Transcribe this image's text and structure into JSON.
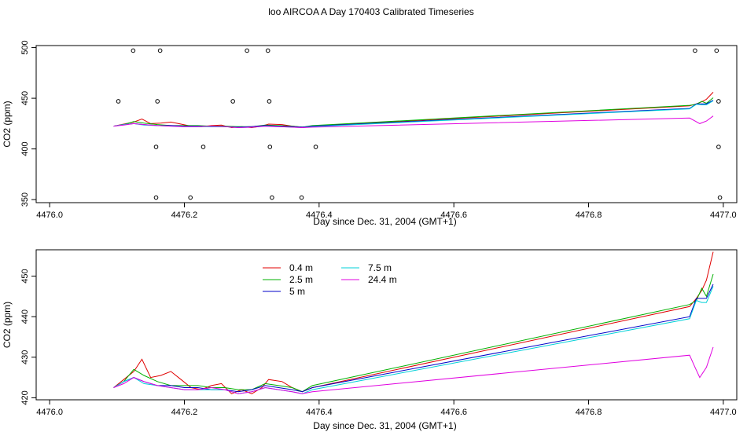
{
  "title": "loo AIRCOA A  Day 170403  Calibrated Timeseries",
  "colors": {
    "0.4 m": "#e00000",
    "2.5 m": "#00b000",
    "5 m": "#0000c8",
    "7.5 m": "#00d0d8",
    "24.4 m": "#e000e0",
    "axis": "#000000"
  },
  "chart_data": [
    {
      "type": "scatter",
      "title": "",
      "xlabel": "Day since Dec. 31, 2004 (GMT+1)",
      "ylabel": "CO2 (ppm)",
      "xlim": [
        3.98,
        5.02
      ],
      "ylim": [
        347,
        502
      ],
      "xticks": [
        4.0,
        4.2,
        4.4,
        4.6,
        4.8,
        5.0
      ],
      "xtick_labels": [
        "4476.0",
        "4476.2",
        "4476.4",
        "4476.6",
        "4476.8",
        "4477.0"
      ],
      "yticks": [
        350,
        400,
        450,
        500
      ],
      "ytick_labels": [
        "350",
        "400",
        "450",
        "500"
      ],
      "box": true,
      "grid": false,
      "points": [
        {
          "x": 4.102,
          "y": 447
        },
        {
          "x": 4.124,
          "y": 497
        },
        {
          "x": 4.158,
          "y": 402
        },
        {
          "x": 4.158,
          "y": 352
        },
        {
          "x": 4.16,
          "y": 447
        },
        {
          "x": 4.164,
          "y": 497
        },
        {
          "x": 4.209,
          "y": 352
        },
        {
          "x": 4.228,
          "y": 402
        },
        {
          "x": 4.272,
          "y": 447
        },
        {
          "x": 4.293,
          "y": 497
        },
        {
          "x": 4.324,
          "y": 497
        },
        {
          "x": 4.326,
          "y": 447
        },
        {
          "x": 4.327,
          "y": 402
        },
        {
          "x": 4.33,
          "y": 352
        },
        {
          "x": 4.374,
          "y": 352
        },
        {
          "x": 4.395,
          "y": 402
        },
        {
          "x": 4.958,
          "y": 497
        },
        {
          "x": 4.99,
          "y": 497
        },
        {
          "x": 4.993,
          "y": 447
        },
        {
          "x": 4.993,
          "y": 402
        },
        {
          "x": 4.995,
          "y": 352
        }
      ],
      "series": [
        {
          "name": "0.4 m",
          "points": [
            [
              4.095,
              422.5
            ],
            [
              4.11,
              424.5
            ],
            [
              4.125,
              426.5
            ],
            [
              4.137,
              429.5
            ],
            [
              4.15,
              425
            ],
            [
              4.165,
              425.5
            ],
            [
              4.18,
              426.5
            ],
            [
              4.195,
              424.5
            ],
            [
              4.21,
              422.5
            ],
            [
              4.225,
              422
            ],
            [
              4.24,
              423
            ],
            [
              4.255,
              423.5
            ],
            [
              4.27,
              421
            ],
            [
              4.285,
              422
            ],
            [
              4.3,
              421
            ],
            [
              4.315,
              422.5
            ],
            [
              4.325,
              424.5
            ],
            [
              4.345,
              424
            ],
            [
              4.36,
              422.5
            ],
            [
              4.375,
              421.5
            ],
            [
              4.39,
              422.5
            ],
            [
              4.95,
              442.5
            ],
            [
              4.96,
              444.5
            ],
            [
              4.968,
              446.5
            ],
            [
              4.975,
              449
            ],
            [
              4.985,
              456
            ]
          ]
        },
        {
          "name": "2.5 m",
          "points": [
            [
              4.095,
              422.5
            ],
            [
              4.11,
              424
            ],
            [
              4.125,
              427
            ],
            [
              4.14,
              425.5
            ],
            [
              4.16,
              424
            ],
            [
              4.18,
              423
            ],
            [
              4.2,
              423
            ],
            [
              4.22,
              423
            ],
            [
              4.24,
              422.5
            ],
            [
              4.26,
              422.5
            ],
            [
              4.28,
              422
            ],
            [
              4.3,
              422
            ],
            [
              4.32,
              423.5
            ],
            [
              4.34,
              423
            ],
            [
              4.36,
              422.5
            ],
            [
              4.375,
              421.5
            ],
            [
              4.39,
              423
            ],
            [
              4.95,
              443
            ],
            [
              4.96,
              444
            ],
            [
              4.968,
              447
            ],
            [
              4.975,
              445
            ],
            [
              4.985,
              450.5
            ]
          ]
        },
        {
          "name": "5 m",
          "points": [
            [
              4.095,
              422.5
            ],
            [
              4.11,
              424
            ],
            [
              4.125,
              425
            ],
            [
              4.14,
              424
            ],
            [
              4.16,
              423
            ],
            [
              4.18,
              423
            ],
            [
              4.2,
              422.5
            ],
            [
              4.22,
              422.5
            ],
            [
              4.24,
              422
            ],
            [
              4.26,
              422
            ],
            [
              4.28,
              421.5
            ],
            [
              4.3,
              422
            ],
            [
              4.32,
              423
            ],
            [
              4.34,
              422.5
            ],
            [
              4.36,
              422
            ],
            [
              4.375,
              421.5
            ],
            [
              4.39,
              422.5
            ],
            [
              4.95,
              440
            ],
            [
              4.96,
              444.5
            ],
            [
              4.968,
              444.5
            ],
            [
              4.975,
              444.5
            ],
            [
              4.985,
              448
            ]
          ]
        },
        {
          "name": "7.5 m",
          "points": [
            [
              4.095,
              422.5
            ],
            [
              4.11,
              424
            ],
            [
              4.125,
              425
            ],
            [
              4.14,
              423.5
            ],
            [
              4.16,
              423
            ],
            [
              4.18,
              422.5
            ],
            [
              4.2,
              422
            ],
            [
              4.22,
              422
            ],
            [
              4.24,
              422
            ],
            [
              4.26,
              422
            ],
            [
              4.28,
              421
            ],
            [
              4.3,
              421.5
            ],
            [
              4.32,
              422.5
            ],
            [
              4.34,
              422
            ],
            [
              4.36,
              421.5
            ],
            [
              4.375,
              421
            ],
            [
              4.39,
              422
            ],
            [
              4.95,
              439.5
            ],
            [
              4.96,
              444
            ],
            [
              4.968,
              443.5
            ],
            [
              4.975,
              443.5
            ],
            [
              4.985,
              447.5
            ]
          ]
        },
        {
          "name": "24.4 m",
          "points": [
            [
              4.095,
              422.5
            ],
            [
              4.11,
              423.5
            ],
            [
              4.125,
              425
            ],
            [
              4.14,
              424
            ],
            [
              4.16,
              423
            ],
            [
              4.18,
              422.5
            ],
            [
              4.2,
              422
            ],
            [
              4.22,
              422
            ],
            [
              4.24,
              422.5
            ],
            [
              4.26,
              422
            ],
            [
              4.28,
              421
            ],
            [
              4.3,
              421.5
            ],
            [
              4.32,
              422.5
            ],
            [
              4.34,
              422
            ],
            [
              4.36,
              421.5
            ],
            [
              4.375,
              421
            ],
            [
              4.39,
              421.5
            ],
            [
              4.95,
              430.5
            ],
            [
              4.958,
              427.5
            ],
            [
              4.965,
              425
            ],
            [
              4.975,
              427.5
            ],
            [
              4.985,
              432.5
            ]
          ]
        }
      ]
    },
    {
      "type": "line",
      "title": "",
      "xlabel": "Day since Dec. 31, 2004 (GMT+1)",
      "ylabel": "CO2 (ppm)",
      "xlim": [
        3.98,
        5.02
      ],
      "ylim": [
        419.5,
        456.5
      ],
      "xticks": [
        4.0,
        4.2,
        4.4,
        4.6,
        4.8,
        5.0
      ],
      "xtick_labels": [
        "4476.0",
        "4476.2",
        "4476.4",
        "4476.6",
        "4476.8",
        "4477.0"
      ],
      "yticks": [
        420,
        430,
        440,
        450
      ],
      "ytick_labels": [
        "420",
        "430",
        "440",
        "450"
      ],
      "box": true,
      "grid": false,
      "legend": {
        "position": "top-left",
        "columns": 2,
        "entries": [
          "0.4 m",
          "2.5 m",
          "5 m",
          "7.5 m",
          "24.4 m"
        ]
      },
      "series": [
        {
          "name": "0.4 m",
          "points": [
            [
              4.095,
              422.5
            ],
            [
              4.11,
              424.5
            ],
            [
              4.125,
              426.5
            ],
            [
              4.137,
              429.5
            ],
            [
              4.15,
              425
            ],
            [
              4.165,
              425.5
            ],
            [
              4.18,
              426.5
            ],
            [
              4.195,
              424.5
            ],
            [
              4.21,
              422.5
            ],
            [
              4.225,
              422
            ],
            [
              4.24,
              423
            ],
            [
              4.255,
              423.5
            ],
            [
              4.27,
              421
            ],
            [
              4.285,
              422
            ],
            [
              4.3,
              421
            ],
            [
              4.315,
              422.5
            ],
            [
              4.325,
              424.5
            ],
            [
              4.345,
              424
            ],
            [
              4.36,
              422.5
            ],
            [
              4.375,
              421.5
            ],
            [
              4.39,
              422.5
            ],
            [
              4.95,
              442.5
            ],
            [
              4.96,
              444.5
            ],
            [
              4.968,
              446.5
            ],
            [
              4.975,
              449
            ],
            [
              4.985,
              456
            ]
          ]
        },
        {
          "name": "2.5 m",
          "points": [
            [
              4.095,
              422.5
            ],
            [
              4.11,
              424
            ],
            [
              4.125,
              427
            ],
            [
              4.14,
              425.5
            ],
            [
              4.16,
              424
            ],
            [
              4.18,
              423
            ],
            [
              4.2,
              423
            ],
            [
              4.22,
              423
            ],
            [
              4.24,
              422.5
            ],
            [
              4.26,
              422.5
            ],
            [
              4.28,
              422
            ],
            [
              4.3,
              422
            ],
            [
              4.32,
              423.5
            ],
            [
              4.34,
              423
            ],
            [
              4.36,
              422.5
            ],
            [
              4.375,
              421.5
            ],
            [
              4.39,
              423
            ],
            [
              4.95,
              443
            ],
            [
              4.96,
              444
            ],
            [
              4.968,
              447
            ],
            [
              4.975,
              445
            ],
            [
              4.985,
              450.5
            ]
          ]
        },
        {
          "name": "5 m",
          "points": [
            [
              4.095,
              422.5
            ],
            [
              4.11,
              424
            ],
            [
              4.125,
              425
            ],
            [
              4.14,
              424
            ],
            [
              4.16,
              423
            ],
            [
              4.18,
              423
            ],
            [
              4.2,
              422.5
            ],
            [
              4.22,
              422.5
            ],
            [
              4.24,
              422
            ],
            [
              4.26,
              422
            ],
            [
              4.28,
              421.5
            ],
            [
              4.3,
              422
            ],
            [
              4.32,
              423
            ],
            [
              4.34,
              422.5
            ],
            [
              4.36,
              422
            ],
            [
              4.375,
              421.5
            ],
            [
              4.39,
              422.5
            ],
            [
              4.95,
              440
            ],
            [
              4.96,
              444.5
            ],
            [
              4.968,
              444.5
            ],
            [
              4.975,
              444.5
            ],
            [
              4.985,
              448
            ]
          ]
        },
        {
          "name": "7.5 m",
          "points": [
            [
              4.095,
              422.5
            ],
            [
              4.11,
              424
            ],
            [
              4.125,
              425
            ],
            [
              4.14,
              423.5
            ],
            [
              4.16,
              423
            ],
            [
              4.18,
              422.5
            ],
            [
              4.2,
              422
            ],
            [
              4.22,
              422
            ],
            [
              4.24,
              422
            ],
            [
              4.26,
              422
            ],
            [
              4.28,
              421
            ],
            [
              4.3,
              421.5
            ],
            [
              4.32,
              422.5
            ],
            [
              4.34,
              422
            ],
            [
              4.36,
              421.5
            ],
            [
              4.375,
              421
            ],
            [
              4.39,
              422
            ],
            [
              4.95,
              439.5
            ],
            [
              4.96,
              444
            ],
            [
              4.968,
              443.5
            ],
            [
              4.975,
              443.5
            ],
            [
              4.985,
              447.5
            ]
          ]
        },
        {
          "name": "24.4 m",
          "points": [
            [
              4.095,
              422.5
            ],
            [
              4.11,
              423.5
            ],
            [
              4.125,
              425
            ],
            [
              4.14,
              424
            ],
            [
              4.16,
              423
            ],
            [
              4.18,
              422.5
            ],
            [
              4.2,
              422
            ],
            [
              4.22,
              422
            ],
            [
              4.24,
              422.5
            ],
            [
              4.26,
              422
            ],
            [
              4.28,
              421
            ],
            [
              4.3,
              421.5
            ],
            [
              4.32,
              422.5
            ],
            [
              4.34,
              422
            ],
            [
              4.36,
              421.5
            ],
            [
              4.375,
              421
            ],
            [
              4.39,
              421.5
            ],
            [
              4.95,
              430.5
            ],
            [
              4.958,
              427.5
            ],
            [
              4.965,
              425
            ],
            [
              4.975,
              427.5
            ],
            [
              4.985,
              432.5
            ]
          ]
        }
      ]
    }
  ]
}
